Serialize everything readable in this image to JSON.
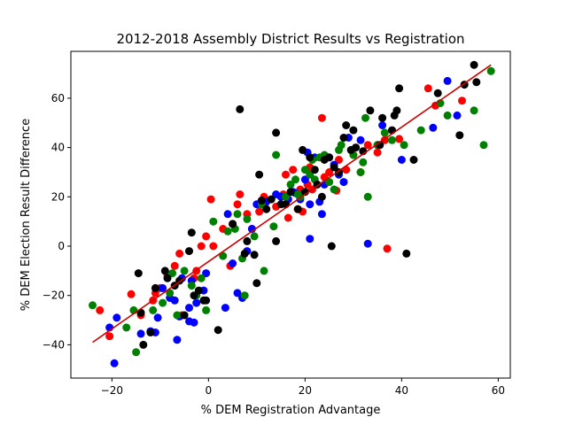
{
  "chart_data": {
    "type": "scatter",
    "title": "2012-2018 Assembly District Results vs Registration",
    "xlabel": "% DEM Registration Advantage",
    "ylabel": "% DEM Election Result Difference",
    "xlim": [
      -28.5,
      62.5
    ],
    "ylim": [
      -53.5,
      79
    ],
    "xticks": [
      -20,
      0,
      20,
      40,
      60
    ],
    "yticks": [
      -40,
      -20,
      0,
      20,
      40,
      60
    ],
    "grid": false,
    "series": [
      {
        "color": "#ff0000",
        "points": [
          [
            -22.5,
            -26
          ],
          [
            -20.5,
            -36.5
          ],
          [
            -16,
            -19.5
          ],
          [
            -14,
            -28
          ],
          [
            -11.5,
            -22
          ],
          [
            -11,
            -19
          ],
          [
            -10,
            -17
          ],
          [
            -8.5,
            -12
          ],
          [
            -7,
            -8
          ],
          [
            -6,
            -3
          ],
          [
            -5.5,
            -28
          ],
          [
            -3,
            -13
          ],
          [
            -2.5,
            -10
          ],
          [
            -1.5,
            0
          ],
          [
            -0.5,
            4
          ],
          [
            0.5,
            19
          ],
          [
            1,
            0
          ],
          [
            3,
            7
          ],
          [
            4.5,
            -8
          ],
          [
            5,
            9
          ],
          [
            6,
            17
          ],
          [
            6.5,
            21
          ],
          [
            8,
            13
          ],
          [
            9,
            7
          ],
          [
            10.5,
            14
          ],
          [
            11.5,
            20
          ],
          [
            14,
            16
          ],
          [
            15.5,
            21
          ],
          [
            16,
            29
          ],
          [
            16.5,
            11.5
          ],
          [
            17.5,
            31
          ],
          [
            18.5,
            15
          ],
          [
            19,
            23
          ],
          [
            19.5,
            14
          ],
          [
            20.5,
            25
          ],
          [
            21,
            32
          ],
          [
            21.5,
            23
          ],
          [
            22.5,
            25
          ],
          [
            23.5,
            52
          ],
          [
            24,
            28
          ],
          [
            25,
            30
          ],
          [
            26.5,
            22.5
          ],
          [
            27,
            35
          ],
          [
            28.5,
            31
          ],
          [
            30,
            37
          ],
          [
            31.5,
            30
          ],
          [
            33,
            41
          ],
          [
            35,
            38
          ],
          [
            36.5,
            43
          ],
          [
            37,
            -1
          ],
          [
            39.5,
            43.5
          ],
          [
            45.5,
            64
          ],
          [
            47,
            57
          ],
          [
            52.5,
            59
          ]
        ]
      },
      {
        "color": "#0000ff",
        "points": [
          [
            -20.5,
            -33
          ],
          [
            -19.5,
            -47.5
          ],
          [
            -19,
            -29
          ],
          [
            -14,
            -35.5
          ],
          [
            -12,
            -34.5
          ],
          [
            -11,
            -35
          ],
          [
            -10.5,
            -29
          ],
          [
            -9.5,
            -17
          ],
          [
            -8,
            -21
          ],
          [
            -7,
            -22
          ],
          [
            -6.5,
            -38
          ],
          [
            -6,
            -28.5
          ],
          [
            -5.5,
            -13
          ],
          [
            -4,
            -25
          ],
          [
            -4,
            -30.5
          ],
          [
            -3.5,
            -14
          ],
          [
            -3,
            -31
          ],
          [
            -2.5,
            -23
          ],
          [
            -1,
            -18
          ],
          [
            -0.5,
            -11
          ],
          [
            3.5,
            -25
          ],
          [
            4,
            13
          ],
          [
            5,
            -7
          ],
          [
            6,
            -19
          ],
          [
            7,
            -21
          ],
          [
            8,
            -2
          ],
          [
            9,
            7
          ],
          [
            10,
            17
          ],
          [
            11,
            17
          ],
          [
            12,
            18
          ],
          [
            14,
            21
          ],
          [
            15,
            20
          ],
          [
            16.5,
            19
          ],
          [
            17.5,
            22
          ],
          [
            18,
            21.5
          ],
          [
            19,
            19
          ],
          [
            20,
            27
          ],
          [
            20.5,
            38
          ],
          [
            21,
            3
          ],
          [
            21,
            17
          ],
          [
            22,
            36
          ],
          [
            23,
            18
          ],
          [
            23.5,
            13
          ],
          [
            24,
            25
          ],
          [
            25,
            36
          ],
          [
            26,
            33
          ],
          [
            27,
            29
          ],
          [
            28,
            26
          ],
          [
            29,
            44
          ],
          [
            31.5,
            43
          ],
          [
            33,
            1
          ],
          [
            35,
            41
          ],
          [
            36,
            49
          ],
          [
            40,
            35
          ],
          [
            46.5,
            48
          ],
          [
            49.5,
            67
          ],
          [
            51.5,
            53
          ]
        ]
      },
      {
        "color": "#008000",
        "points": [
          [
            -24,
            -24
          ],
          [
            -17,
            -33
          ],
          [
            -15.5,
            -26
          ],
          [
            -15,
            -43
          ],
          [
            -11.5,
            -26
          ],
          [
            -9.5,
            -23
          ],
          [
            -8,
            -19
          ],
          [
            -7.5,
            -11
          ],
          [
            -6.5,
            -28
          ],
          [
            -5,
            -10
          ],
          [
            -3.5,
            -16
          ],
          [
            -2.5,
            -20
          ],
          [
            -1.5,
            -13
          ],
          [
            -0.5,
            -26
          ],
          [
            1,
            10
          ],
          [
            3,
            -4
          ],
          [
            4,
            6
          ],
          [
            5.5,
            7
          ],
          [
            6,
            13
          ],
          [
            7,
            -5
          ],
          [
            7.5,
            -20
          ],
          [
            8,
            11
          ],
          [
            9.5,
            4
          ],
          [
            11,
            17
          ],
          [
            11.5,
            -10
          ],
          [
            13.5,
            8
          ],
          [
            14,
            37
          ],
          [
            16,
            20
          ],
          [
            17,
            25
          ],
          [
            18,
            27
          ],
          [
            18.5,
            21
          ],
          [
            19,
            20
          ],
          [
            20,
            31
          ],
          [
            21,
            29
          ],
          [
            21.5,
            35
          ],
          [
            22,
            27
          ],
          [
            23,
            36
          ],
          [
            24,
            37
          ],
          [
            25,
            26
          ],
          [
            26,
            23
          ],
          [
            27,
            39
          ],
          [
            27.5,
            41
          ],
          [
            30,
            37
          ],
          [
            31.5,
            30
          ],
          [
            32,
            34
          ],
          [
            32.5,
            52
          ],
          [
            33,
            20
          ],
          [
            35,
            41
          ],
          [
            36.5,
            46
          ],
          [
            38,
            43
          ],
          [
            40.5,
            41
          ],
          [
            44,
            47
          ],
          [
            48,
            58
          ],
          [
            49.5,
            53
          ],
          [
            55,
            55
          ],
          [
            57,
            41
          ],
          [
            58.5,
            71
          ]
        ]
      },
      {
        "color": "#000000",
        "points": [
          [
            -14.5,
            -11
          ],
          [
            -14,
            -27
          ],
          [
            -13.5,
            -40
          ],
          [
            -12,
            -35
          ],
          [
            -11,
            -17
          ],
          [
            -9,
            -10
          ],
          [
            -8.5,
            -13
          ],
          [
            -7,
            -16
          ],
          [
            -6,
            -14
          ],
          [
            -5,
            -28
          ],
          [
            -4,
            -2
          ],
          [
            -3.5,
            5.5
          ],
          [
            -3,
            -20
          ],
          [
            -2,
            -18
          ],
          [
            -1,
            -22
          ],
          [
            -0.5,
            -22
          ],
          [
            2,
            -34
          ],
          [
            5,
            9
          ],
          [
            6.5,
            55.5
          ],
          [
            7.5,
            -3
          ],
          [
            8,
            2
          ],
          [
            9.5,
            -3.5
          ],
          [
            10,
            -15
          ],
          [
            10.5,
            29
          ],
          [
            11,
            18.5
          ],
          [
            12,
            15
          ],
          [
            13,
            19
          ],
          [
            14,
            2
          ],
          [
            14,
            46
          ],
          [
            15,
            17
          ],
          [
            16,
            17
          ],
          [
            17,
            22
          ],
          [
            18.5,
            15
          ],
          [
            19.5,
            39
          ],
          [
            20,
            22
          ],
          [
            21,
            36
          ],
          [
            22,
            31
          ],
          [
            22.5,
            25
          ],
          [
            23.5,
            20
          ],
          [
            24,
            35
          ],
          [
            25,
            36
          ],
          [
            25.5,
            0
          ],
          [
            26,
            32
          ],
          [
            27,
            30
          ],
          [
            28,
            44
          ],
          [
            28.5,
            49
          ],
          [
            29.5,
            39
          ],
          [
            30,
            47
          ],
          [
            30.5,
            40
          ],
          [
            32,
            38.5
          ],
          [
            33.5,
            55
          ],
          [
            35.5,
            41
          ],
          [
            36,
            52
          ],
          [
            38,
            47
          ],
          [
            38.5,
            53
          ],
          [
            39,
            55
          ],
          [
            39.5,
            64
          ],
          [
            41,
            -3
          ],
          [
            42.5,
            35
          ],
          [
            47.5,
            62
          ],
          [
            52,
            45
          ],
          [
            53,
            65.5
          ],
          [
            55,
            73.5
          ],
          [
            55.5,
            66.5
          ]
        ]
      }
    ],
    "fit_line": {
      "color": "#cc0000",
      "from": [
        -24,
        -39
      ],
      "to": [
        58.5,
        73.5
      ]
    }
  }
}
